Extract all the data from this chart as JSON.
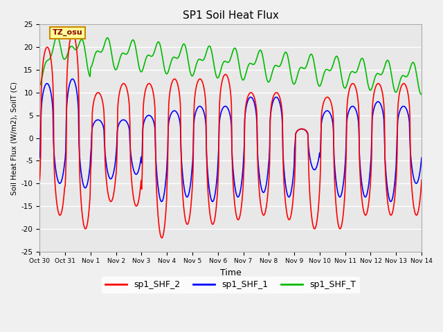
{
  "title": "SP1 Soil Heat Flux",
  "xlabel": "Time",
  "ylabel": "Soil Heat Flux (W/m2), SoilT (C)",
  "ylim": [
    -25,
    25
  ],
  "tick_labels": [
    "Oct 30",
    "Oct 31",
    "Nov 1",
    "Nov 2",
    "Nov 3",
    "Nov 4",
    "Nov 5",
    "Nov 6",
    "Nov 7",
    "Nov 8",
    "Nov 9",
    "Nov 10",
    "Nov 11",
    "Nov 12",
    "Nov 13",
    "Nov 14"
  ],
  "color_shf2": "#ff0000",
  "color_shf1": "#0000ff",
  "color_shft": "#00bb00",
  "bg_color": "#e8e8e8",
  "legend_label_2": "sp1_SHF_2",
  "legend_label_1": "sp1_SHF_1",
  "legend_label_T": "sp1_SHF_T",
  "tz_label": "TZ_osu",
  "tz_box_color": "#ffff99",
  "tz_border_color": "#cc8800",
  "tz_text_color": "#880000",
  "grid_color": "#ffffff",
  "linewidth": 1.2,
  "fig_width": 6.4,
  "fig_height": 4.8,
  "dpi": 100
}
